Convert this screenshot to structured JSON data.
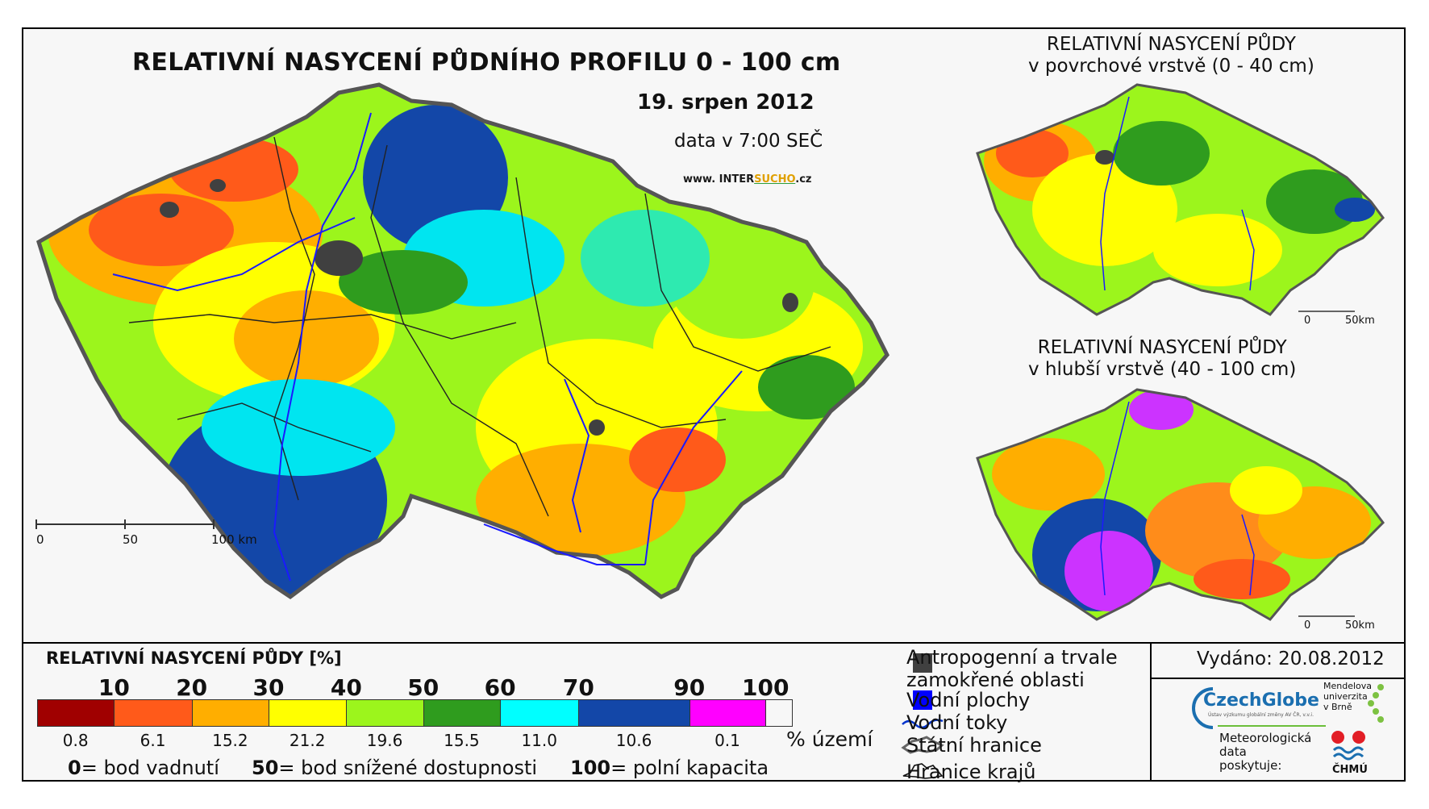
{
  "main": {
    "title": "RELATIVNÍ NASYCENÍ PŮDNÍHO PROFILU 0 - 100 cm",
    "date": "19. srpen 2012",
    "time": "data v 7:00 SEČ",
    "website_prefix": "www. INTER",
    "website_brand": "SUCHO",
    "website_suffix": ".cz",
    "scale_labels": [
      "0",
      "50",
      "100 km"
    ]
  },
  "top_inset": {
    "title_line1": "RELATIVNÍ NASYCENÍ PŮDY",
    "title_line2": "v povrchové vrstvě (0 - 40 cm)",
    "scale_labels": [
      "0",
      "50km"
    ]
  },
  "bottom_inset": {
    "title_line1": "RELATIVNÍ NASYCENÍ PŮDY",
    "title_line2": "v hlubší vrstvě (40 - 100 cm)",
    "scale_labels": [
      "0",
      "50km"
    ]
  },
  "legend": {
    "title": "RELATIVNÍ NASYCENÍ PŮDY [%]",
    "breaks": [
      "10",
      "20",
      "30",
      "40",
      "50",
      "60",
      "70",
      "90",
      "100"
    ],
    "colors": [
      "#a00000",
      "#ff5a1a",
      "#ffae00",
      "#ffff00",
      "#9cf51c",
      "#2f9c1e",
      "#00ffff",
      "#1347a8",
      "#ff00ff"
    ],
    "percentages": [
      "0.8",
      "6.1",
      "15.2",
      "21.2",
      "19.6",
      "15.5",
      "11.0",
      "10.6",
      "0.1"
    ],
    "percent_unit": "% území",
    "notes": [
      {
        "value": "0",
        "text": "= bod vadnutí"
      },
      {
        "value": "50",
        "text": "= bod snížené dostupnosti"
      },
      {
        "value": "100",
        "text": "= polní kapacita"
      }
    ]
  },
  "symbols": {
    "anthropogenic_line1": "Antropogenní a trvale",
    "anthropogenic_line2": "zamokřené oblasti",
    "water_bodies": "Vodní plochy",
    "rivers": "Vodní toky",
    "state_border": "Státní hranice",
    "region_border": "Hranice krajů",
    "colors": {
      "anthropogenic": "#404040",
      "water": "#0000ff",
      "river": "#0033cc"
    }
  },
  "credits": {
    "issued": "Vydáno: 20.08.2012",
    "czechglobe": "CzechGlobe",
    "czechglobe_sub": "Ústav výzkumu globální změny AV ČR, v.v.i.",
    "mendel_line1": "Mendelova",
    "mendel_line2": "univerzita",
    "mendel_line3": "v Brně",
    "meteo_line1": "Meteorologická",
    "meteo_line2": "data",
    "meteo_line3": "poskytuje:",
    "chmu": "ČHMÚ"
  }
}
